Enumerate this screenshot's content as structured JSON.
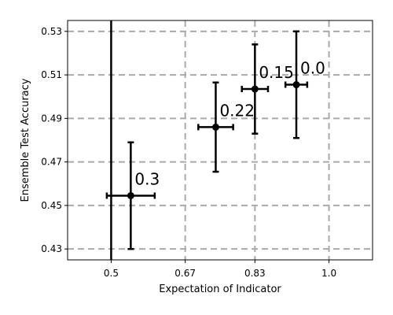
{
  "chart_data": {
    "type": "scatter",
    "xlabel": "Expectation of Indicator",
    "ylabel": "Ensemble Test Accuracy",
    "xlim": [
      0.4,
      1.1
    ],
    "ylim": [
      0.425,
      0.535
    ],
    "xticks": [
      "0.5",
      "0.67",
      "0.83",
      "1.0"
    ],
    "xtick_values": [
      0.5,
      0.67,
      0.83,
      1.0
    ],
    "yticks": [
      "0.43",
      "0.45",
      "0.47",
      "0.49",
      "0.51",
      "0.53"
    ],
    "ytick_values": [
      0.43,
      0.45,
      0.47,
      0.49,
      0.51,
      0.53
    ],
    "grid": true,
    "grid_style": "dashed",
    "grid_color": "#aaaaaa",
    "marker_color": "#000000",
    "vertical_line_x": 0.5,
    "points": [
      {
        "x": 0.545,
        "y": 0.4545,
        "x_err": 0.055,
        "y_err": 0.0245,
        "label": "0.3"
      },
      {
        "x": 0.74,
        "y": 0.486,
        "x_err": 0.04,
        "y_err": 0.0205,
        "label": "0.22"
      },
      {
        "x": 0.83,
        "y": 0.5035,
        "x_err": 0.03,
        "y_err": 0.0205,
        "label": "0.15"
      },
      {
        "x": 0.925,
        "y": 0.5055,
        "x_err": 0.025,
        "y_err": 0.0245,
        "label": "0.0"
      }
    ]
  }
}
